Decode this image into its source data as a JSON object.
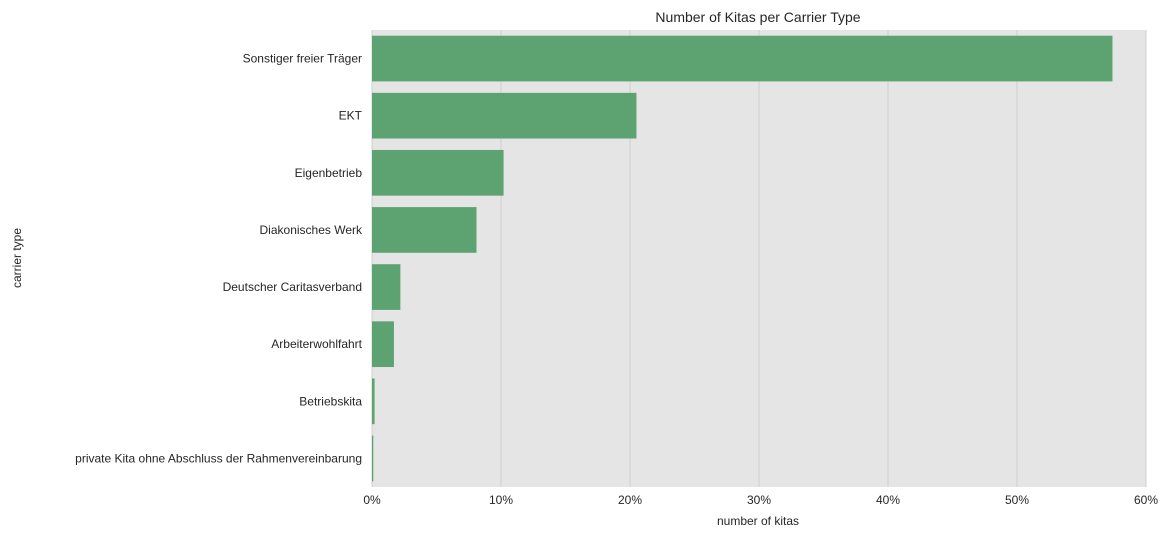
{
  "chart_data": {
    "type": "bar",
    "orientation": "horizontal",
    "title": "Number of Kitas per Carrier Type",
    "xlabel": "number of kitas",
    "ylabel": "carrier type",
    "categories": [
      "Sonstiger freier Träger",
      "EKT",
      "Eigenbetrieb",
      "Diakonisches Werk",
      "Deutscher Caritasverband",
      "Arbeiterwohlfahrt",
      "Betriebskita",
      "private Kita ohne Abschluss der Rahmenvereinbarung"
    ],
    "values": [
      57.4,
      20.5,
      10.2,
      8.1,
      2.2,
      1.7,
      0.2,
      0.1
    ],
    "xlim": [
      0,
      60
    ],
    "xticks": [
      0,
      10,
      20,
      30,
      40,
      50,
      60
    ],
    "xtick_labels": [
      "0%",
      "10%",
      "20%",
      "30%",
      "40%",
      "50%",
      "60%"
    ],
    "bar_color": "#5da271",
    "background_color": "#e5e5e5",
    "grid": true
  }
}
